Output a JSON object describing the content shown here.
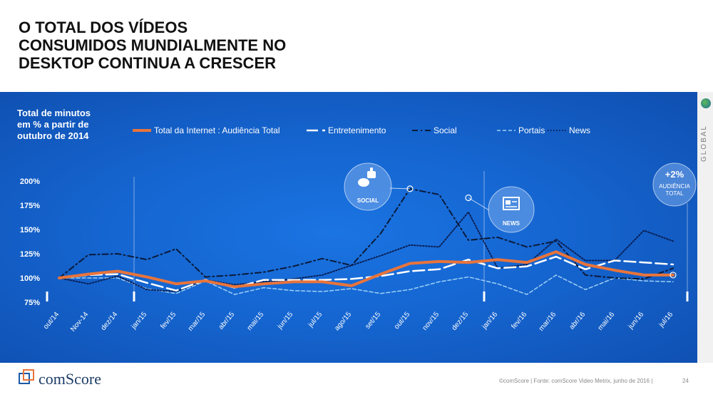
{
  "slide": {
    "title_lines": [
      "O TOTAL DOS VÍDEOS",
      "CONSUMIDOS MUNDIALMENTE NO",
      "DESKTOP CONTINUA A CRESCER"
    ],
    "side_label": "GLOBAL",
    "footer": {
      "brand": "comScore",
      "note": "©comScore  |  Fonte: comScore Video Metrix, junho de 2016  |",
      "page": "24"
    },
    "colors": {
      "panel": "#1565d0",
      "total": "#e8743b",
      "lines": "#ffffff",
      "social": "#0a1a3a",
      "portais": "#9fd0f5",
      "news": "#0a1f55"
    }
  },
  "chart_data": {
    "type": "line",
    "ytitle_lines": [
      "Total de minutos",
      "em % a partir de",
      "outubro de 2014"
    ],
    "categories": [
      "out/14",
      "Nov-14",
      "dez/14",
      "jan/15",
      "fev/15",
      "mar/15",
      "abr/15",
      "mai/15",
      "jun/15",
      "jul/15",
      "ago/15",
      "set/15",
      "out/15",
      "nov/15",
      "dez/15",
      "jan/16",
      "fev/16",
      "mar/16",
      "abr/16",
      "mai/16",
      "jun/16",
      "jul/16"
    ],
    "yticks": [
      "200%",
      "175%",
      "150%",
      "125%",
      "100%",
      "75%"
    ],
    "ylim": [
      75,
      200
    ],
    "legend_placement": "top",
    "grid": false,
    "series": [
      {
        "name": "Total da Internet : Audiência Total",
        "style": "solid-orange",
        "values": [
          100,
          104,
          107,
          101,
          94,
          97,
          91,
          94,
          96,
          96,
          92,
          104,
          115,
          117,
          116,
          119,
          116,
          127,
          114,
          108,
          103,
          103
        ]
      },
      {
        "name": "Entretenimento",
        "style": "dash-white",
        "values": [
          100,
          103,
          104,
          95,
          87,
          98,
          90,
          98,
          98,
          98,
          99,
          102,
          107,
          109,
          119,
          110,
          112,
          122,
          109,
          118,
          116,
          114
        ]
      },
      {
        "name": "Social",
        "style": "dashdot-dark",
        "values": [
          100,
          124,
          125,
          119,
          130,
          101,
          103,
          106,
          112,
          120,
          113,
          146,
          192,
          186,
          139,
          142,
          132,
          138,
          103,
          100,
          99,
          110
        ]
      },
      {
        "name": "Portais",
        "style": "dash-lightblue",
        "values": [
          100,
          100,
          100,
          89,
          84,
          97,
          83,
          90,
          87,
          86,
          89,
          84,
          88,
          96,
          101,
          94,
          83,
          103,
          88,
          100,
          97,
          96
        ]
      },
      {
        "name": "News",
        "style": "dotted-dark",
        "values": [
          100,
          94,
          102,
          88,
          86,
          98,
          93,
          96,
          99,
          103,
          113,
          123,
          134,
          132,
          168,
          110,
          114,
          140,
          118,
          118,
          149,
          138
        ]
      }
    ],
    "annotations": [
      {
        "label": "SOCIAL",
        "icon": "thumbs-up-chat-icon",
        "anchor_category": "out/15"
      },
      {
        "label": "NEWS",
        "icon": "newspaper-icon",
        "anchor_category": "dez/15"
      },
      {
        "value": "+2%",
        "label_lines": [
          "AUDIÊNCIA",
          "TOTAL"
        ],
        "anchor_category": "jul/16"
      }
    ]
  }
}
